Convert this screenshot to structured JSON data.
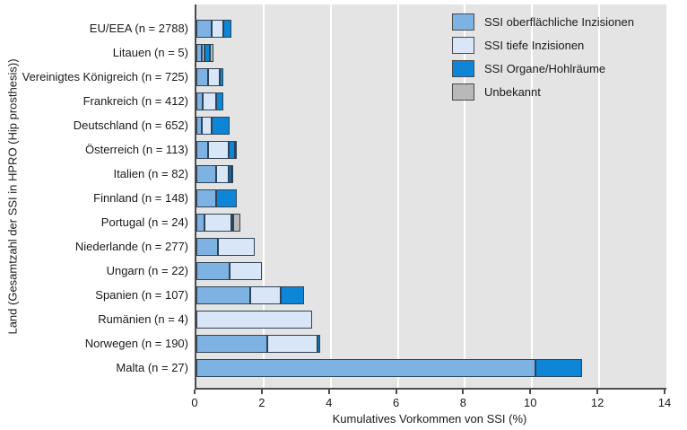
{
  "figure": {
    "y_axis_title": "Land (Gesamtzahl der SSI in HPRO (Hip prosthesis))",
    "x_axis_title": "Kumulatives Vorkommen von SSI (%)"
  },
  "colors": {
    "superficial": "#7EB2E3",
    "deep": "#D8E6F7",
    "organ": "#0E86D7",
    "unknown": "#B9B9B9",
    "plot_background": "#E4E4E4",
    "gridline": "#FFFFFF",
    "axis": "#4D4D4D",
    "segment_border": "#2E4356",
    "text": "#1A1A1A"
  },
  "legend": {
    "items": [
      {
        "label": "SSI oberflächliche Inzisionen",
        "color": "#7EB2E3"
      },
      {
        "label": "SSI tiefe Inzisionen",
        "color": "#D8E6F7"
      },
      {
        "label": "SSI Organe/Hohlräume",
        "color": "#0E86D7"
      },
      {
        "label": "Unbekannt",
        "color": "#B9B9B9"
      }
    ]
  },
  "chart_data": {
    "type": "bar",
    "orientation": "horizontal",
    "stacked": true,
    "title": "",
    "xlabel": "Kumulatives Vorkommen von SSI (%)",
    "ylabel": "Land (Gesamtzahl der SSI in HPRO (Hip prosthesis))",
    "xlim": [
      0,
      14
    ],
    "xticks": [
      0,
      2,
      4,
      6,
      8,
      10,
      12,
      14
    ],
    "grid": true,
    "legend_position": "top-right",
    "categories": [
      "EU/EEA (n = 2788)",
      "Litauen (n = 5)",
      "Vereinigtes Königreich (n = 725)",
      "Frankreich (n = 412)",
      "Deutschland (n = 652)",
      "Österreich (n = 113)",
      "Italien (n = 82)",
      "Finnland (n = 148)",
      "Portugal (n = 24)",
      "Niederlande (n = 277)",
      "Ungarn (n = 22)",
      "Spanien (n = 107)",
      "Rumänien (n = 4)",
      "Norwegen (n = 190)",
      "Malta (n = 27)"
    ],
    "series": [
      {
        "name": "SSI oberflächliche Inzisionen",
        "color": "#7EB2E3",
        "values": [
          0.45,
          0.15,
          0.35,
          0.2,
          0.15,
          0.35,
          0.6,
          0.6,
          0.25,
          0.65,
          1.0,
          1.6,
          0,
          2.1,
          10.1
        ]
      },
      {
        "name": "SSI tiefe Inzisionen",
        "color": "#D8E6F7",
        "values": [
          0.35,
          0.1,
          0.35,
          0.4,
          0.3,
          0.6,
          0.35,
          0,
          0.8,
          1.1,
          0.95,
          0.9,
          3.45,
          1.5,
          0
        ]
      },
      {
        "name": "SSI Organe/Hohlräume",
        "color": "#0E86D7",
        "values": [
          0.25,
          0.15,
          0.1,
          0.2,
          0.55,
          0.2,
          0.1,
          0.6,
          0.05,
          0,
          0,
          0.7,
          0,
          0.1,
          1.4
        ]
      },
      {
        "name": "Unbekannt",
        "color": "#B9B9B9",
        "values": [
          0,
          0.1,
          0,
          0,
          0,
          0.05,
          0.05,
          0,
          0.2,
          0,
          0,
          0,
          0,
          0,
          0
        ]
      }
    ]
  }
}
